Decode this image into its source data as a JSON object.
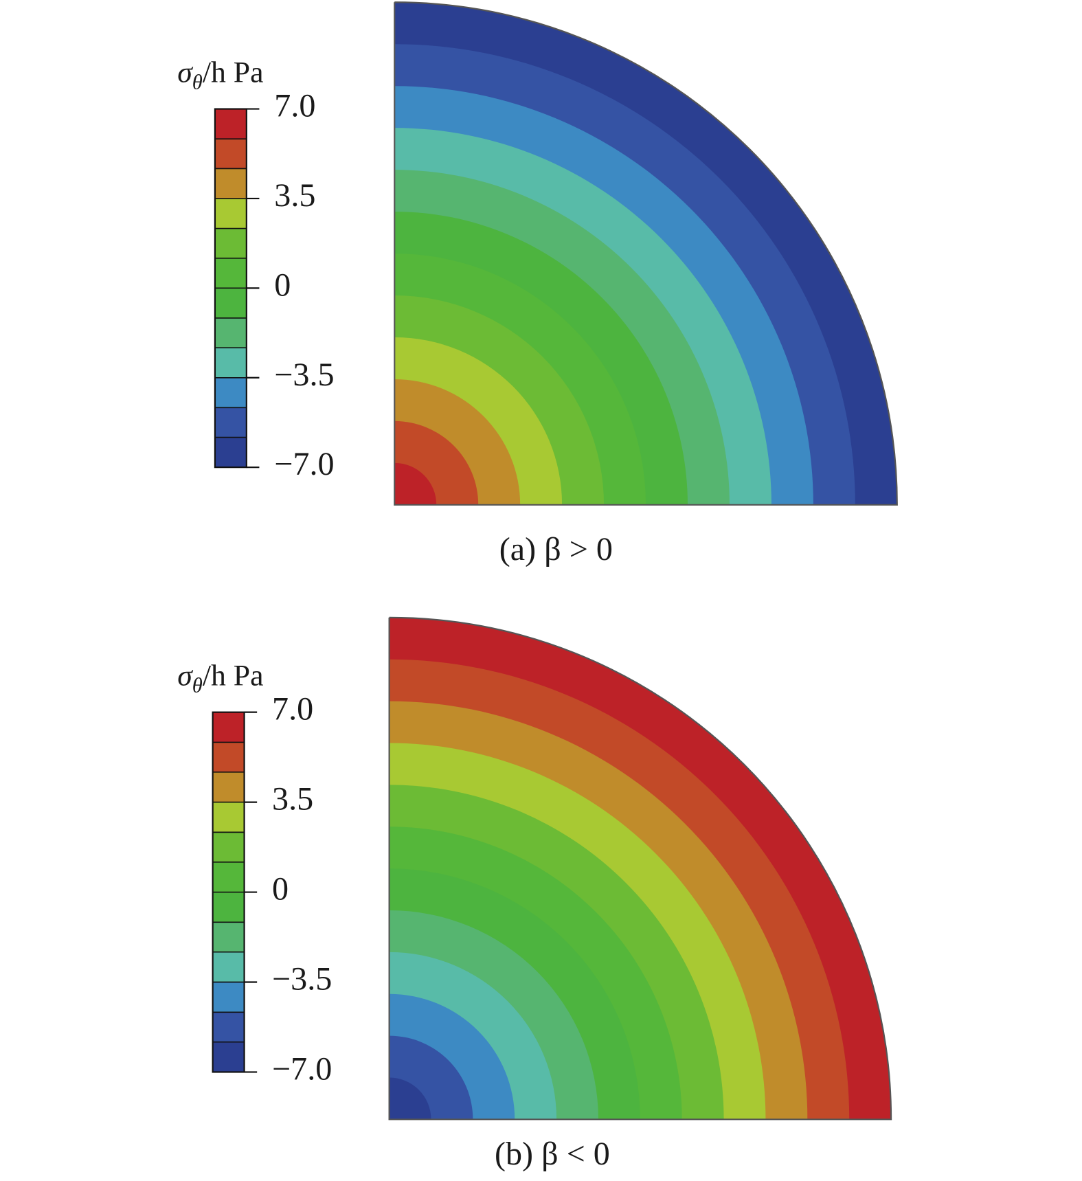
{
  "chart_data": [
    {
      "type": "contour",
      "colorbar_label": {
        "symbol": "σ",
        "subscript": "θ",
        "unit": "/h Pa"
      },
      "caption": "(a) β > 0",
      "clim": [
        -7,
        7
      ],
      "ticks": [
        {
          "value": 7,
          "label": "7.0"
        },
        3.5,
        0,
        {
          "value": -3.5,
          "label": "−3.5"
        },
        {
          "value": -7,
          "label": "−7.0"
        }
      ],
      "levels": [
        -7,
        -5.83,
        -4.67,
        -3.5,
        -2.33,
        -1.17,
        0,
        1.17,
        2.33,
        3.5,
        4.67,
        5.83,
        7
      ],
      "colors": [
        "#2b3f91",
        "#3553a4",
        "#3d8ac3",
        "#58bba8",
        "#56b570",
        "#4db43f",
        "#55b73a",
        "#6cbb35",
        "#a8c933",
        "#c08c2b",
        "#c24a28",
        "#bd2228"
      ],
      "ring_values": [
        6.4,
        5.3,
        4.1,
        2.9,
        1.8,
        0.6,
        -0.6,
        -1.8,
        -2.9,
        -4.1,
        -5.3,
        -6.4
      ]
    },
    {
      "type": "contour",
      "colorbar_label": {
        "symbol": "σ",
        "subscript": "θ",
        "unit": "/h Pa"
      },
      "caption": "(b) β < 0",
      "clim": [
        -7,
        7
      ],
      "ticks": [
        {
          "value": 7,
          "label": "7.0"
        },
        3.5,
        0,
        {
          "value": -3.5,
          "label": "−3.5"
        },
        {
          "value": -7,
          "label": "−7.0"
        }
      ],
      "levels": [
        -7,
        -5.83,
        -4.67,
        -3.5,
        -2.33,
        -1.17,
        0,
        1.17,
        2.33,
        3.5,
        4.67,
        5.83,
        7
      ],
      "colors": [
        "#2b3f91",
        "#3553a4",
        "#3d8ac3",
        "#58bba8",
        "#56b570",
        "#4db43f",
        "#55b73a",
        "#6cbb35",
        "#a8c933",
        "#c08c2b",
        "#c24a28",
        "#bd2228"
      ],
      "ring_values": [
        -6.4,
        -5.3,
        -4.1,
        -2.9,
        -1.8,
        -0.6,
        0.6,
        1.8,
        2.9,
        4.1,
        5.3,
        6.4
      ]
    }
  ]
}
